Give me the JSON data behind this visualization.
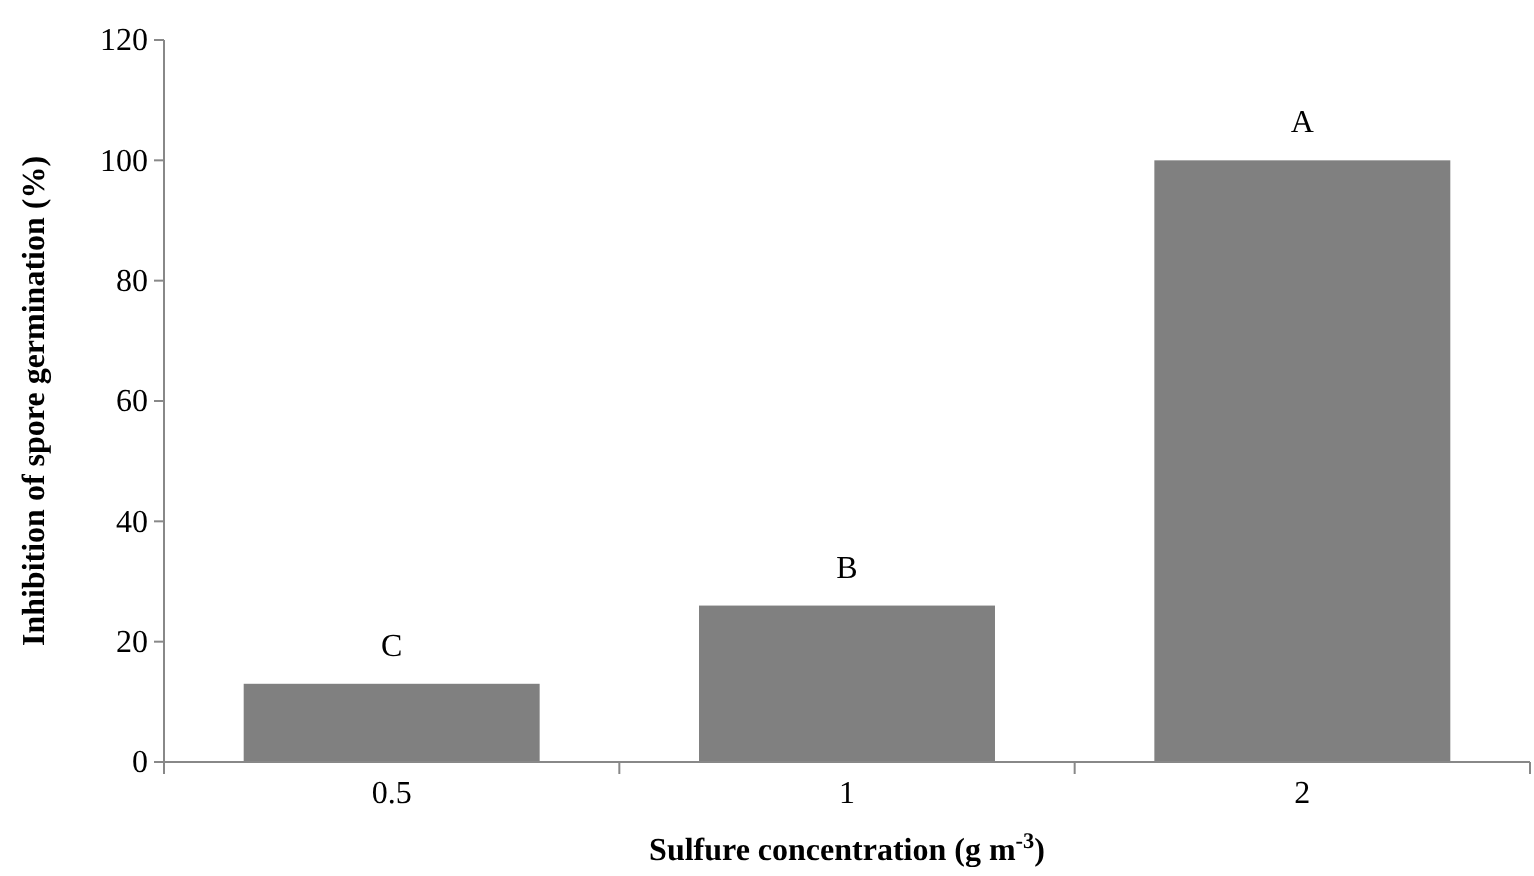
{
  "chart_data": {
    "type": "bar",
    "xlabel": "Sulfure concentration (g m$^{-3}$)",
    "ylabel": "Inhibition of spore germination (%)",
    "categories": [
      "0.5",
      "1",
      "2"
    ],
    "values": [
      13,
      26,
      100
    ],
    "color": "#808080",
    "ylim": [
      0,
      120
    ],
    "yticks": [
      0,
      20,
      40,
      60,
      80,
      100,
      120
    ],
    "grid": false,
    "annotations": [
      {
        "text": "C",
        "x": "0.5",
        "y": 13
      },
      {
        "text": "B",
        "x": "1",
        "y": 26
      },
      {
        "text": "A",
        "x": "2",
        "y": 100
      }
    ]
  }
}
